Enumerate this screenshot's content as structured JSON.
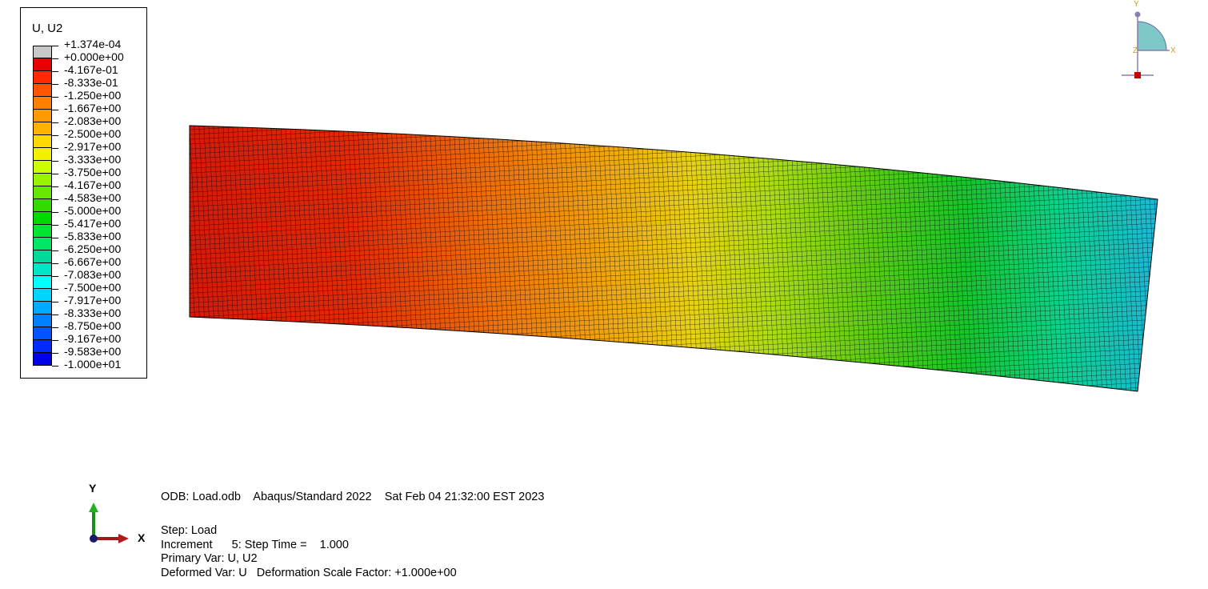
{
  "legend": {
    "title": "U, U2",
    "labels": [
      "+1.374e-04",
      "+0.000e+00",
      "-4.167e-01",
      "-8.333e-01",
      "-1.250e+00",
      "-1.667e+00",
      "-2.083e+00",
      "-2.500e+00",
      "-2.917e+00",
      "-3.333e+00",
      "-3.750e+00",
      "-4.167e+00",
      "-4.583e+00",
      "-5.000e+00",
      "-5.417e+00",
      "-5.833e+00",
      "-6.250e+00",
      "-6.667e+00",
      "-7.083e+00",
      "-7.500e+00",
      "-7.917e+00",
      "-8.333e+00",
      "-8.750e+00",
      "-9.167e+00",
      "-9.583e+00",
      "-1.000e+01"
    ],
    "colors": [
      "#c8c8c8",
      "#e60000",
      "#ff2a00",
      "#ff5500",
      "#ff7f00",
      "#ff9900",
      "#ffb300",
      "#ffd900",
      "#f2f200",
      "#ccff00",
      "#99f200",
      "#66e600",
      "#33d900",
      "#00d900",
      "#00e633",
      "#00e666",
      "#00d999",
      "#00e6c7",
      "#00ffff",
      "#00d4ff",
      "#00aaff",
      "#0080ff",
      "#0055ff",
      "#002bff",
      "#0000e6"
    ]
  },
  "triad": {
    "y_label": "Y",
    "x_label": "X"
  },
  "view_triad": {
    "y_label": "Y",
    "x_label": "X",
    "z_label": "Z"
  },
  "info": {
    "line1": "ODB: Load.odb    Abaqus/Standard 2022    Sat Feb 04 21:32:00 EST 2023",
    "line2": "Step: Load",
    "line3": "Increment      5: Step Time =    1.000",
    "line4": "Primary Var: U, U2",
    "line5": "Deformed Var: U   Deformation Scale Factor: +1.000e+00"
  }
}
